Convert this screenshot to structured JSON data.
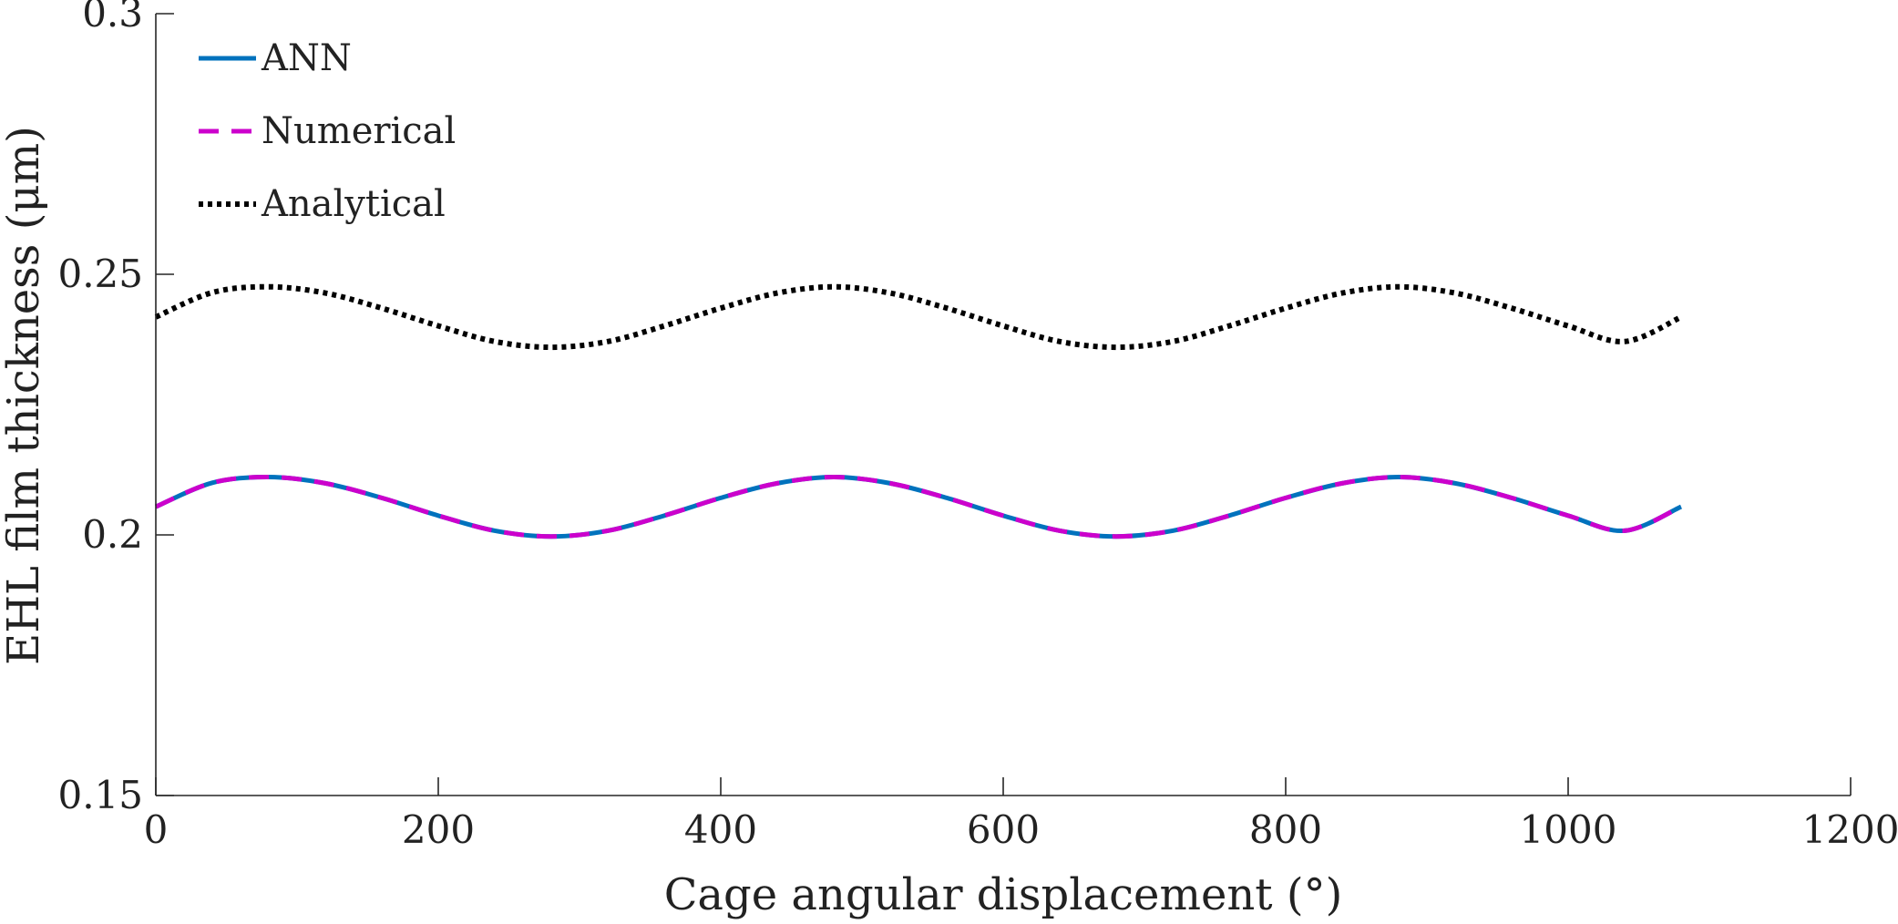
{
  "chart_data": {
    "type": "line",
    "title": "",
    "xlabel": "Cage angular displacement (°)",
    "ylabel": "EHL film thickness (μm)",
    "xlim": [
      0,
      1200
    ],
    "ylim": [
      0.15,
      0.3
    ],
    "xticks": [
      0,
      200,
      400,
      600,
      800,
      1000,
      1200
    ],
    "xtick_labels": [
      "0",
      "200",
      "400",
      "600",
      "800",
      "1000",
      "1200"
    ],
    "yticks": [
      0.15,
      0.2,
      0.25,
      0.3
    ],
    "ytick_labels": [
      "0.15",
      "0.2",
      "0.25",
      "0.3"
    ],
    "grid": false,
    "legend_position": "top-left",
    "x": [
      0,
      40,
      80,
      120,
      160,
      200,
      240,
      280,
      320,
      360,
      400,
      440,
      480,
      520,
      560,
      600,
      640,
      680,
      720,
      760,
      800,
      840,
      880,
      920,
      960,
      1000,
      1040,
      1080
    ],
    "series": [
      {
        "name": "ANN",
        "color": "#0072BD",
        "style": "solid",
        "values": [
          0.2054,
          0.21,
          0.2111,
          0.2099,
          0.2071,
          0.2037,
          0.2008,
          0.1997,
          0.2008,
          0.2037,
          0.2071,
          0.2099,
          0.2111,
          0.2099,
          0.2071,
          0.2037,
          0.2008,
          0.1997,
          0.2008,
          0.2037,
          0.2071,
          0.2099,
          0.2111,
          0.2099,
          0.2071,
          0.2037,
          0.2008,
          0.2054
        ]
      },
      {
        "name": "Numerical",
        "color": "#CC00CC",
        "style": "dashed",
        "values": [
          0.2054,
          0.21,
          0.2111,
          0.2099,
          0.2071,
          0.2037,
          0.2008,
          0.1997,
          0.2008,
          0.2037,
          0.2071,
          0.2099,
          0.2111,
          0.2099,
          0.2071,
          0.2037,
          0.2008,
          0.1997,
          0.2008,
          0.2037,
          0.2071,
          0.2099,
          0.2111,
          0.2099,
          0.2071,
          0.2037,
          0.2008,
          0.2054
        ]
      },
      {
        "name": "Analytical",
        "color": "#000000",
        "style": "dotted",
        "values": [
          0.2418,
          0.2465,
          0.2476,
          0.2464,
          0.2435,
          0.2401,
          0.2371,
          0.236,
          0.2371,
          0.2401,
          0.2435,
          0.2464,
          0.2476,
          0.2464,
          0.2435,
          0.2401,
          0.2371,
          0.236,
          0.2371,
          0.2401,
          0.2435,
          0.2464,
          0.2476,
          0.2464,
          0.2435,
          0.2401,
          0.2371,
          0.2418
        ]
      }
    ]
  }
}
